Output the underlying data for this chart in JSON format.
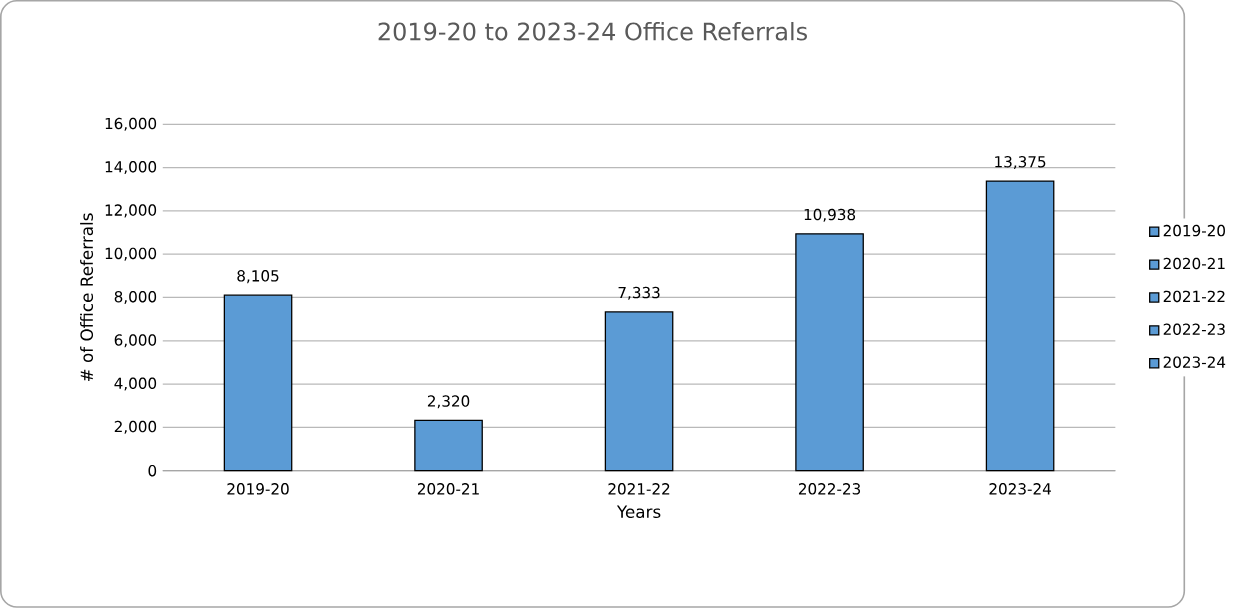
{
  "chart_data": {
    "type": "bar",
    "title": "2019-20 to 2023-24 Office Referrals",
    "xlabel": "Years",
    "ylabel": "# of Office Referrals",
    "categories": [
      "2019-20",
      "2020-21",
      "2021-22",
      "2022-23",
      "2023-24"
    ],
    "stacked": true,
    "series": [
      {
        "name": "2019-20",
        "color": "#5b9bd5",
        "values": [
          8105,
          null,
          null,
          null,
          null
        ],
        "value_labels": [
          "8,105",
          null,
          null,
          null,
          null
        ]
      },
      {
        "name": "2020-21",
        "color": "#5b9bd5",
        "values": [
          null,
          2320,
          null,
          null,
          null
        ],
        "value_labels": [
          null,
          "2,320",
          null,
          null,
          null
        ]
      },
      {
        "name": "2021-22",
        "color": "#5b9bd5",
        "values": [
          null,
          null,
          7333,
          null,
          null
        ],
        "value_labels": [
          null,
          null,
          "7,333",
          null,
          null
        ]
      },
      {
        "name": "2022-23",
        "color": "#5b9bd5",
        "values": [
          null,
          null,
          null,
          10938,
          null
        ],
        "value_labels": [
          null,
          null,
          null,
          "10,938",
          null
        ]
      },
      {
        "name": "2023-24",
        "color": "#5b9bd5",
        "values": [
          null,
          null,
          null,
          null,
          13375
        ],
        "value_labels": [
          null,
          null,
          null,
          null,
          "13,375"
        ]
      }
    ],
    "ylim": [
      0,
      16000
    ],
    "yticks": [
      {
        "value": 0,
        "label": "0"
      },
      {
        "value": 2000,
        "label": "2,000"
      },
      {
        "value": 4000,
        "label": "4,000"
      },
      {
        "value": 6000,
        "label": "6,000"
      },
      {
        "value": 8000,
        "label": "8,000"
      },
      {
        "value": 10000,
        "label": "10,000"
      },
      {
        "value": 12000,
        "label": "12,000"
      },
      {
        "value": 14000,
        "label": "14,000"
      },
      {
        "value": 16000,
        "label": "16,000"
      }
    ],
    "grid": "y",
    "legend": "right"
  }
}
